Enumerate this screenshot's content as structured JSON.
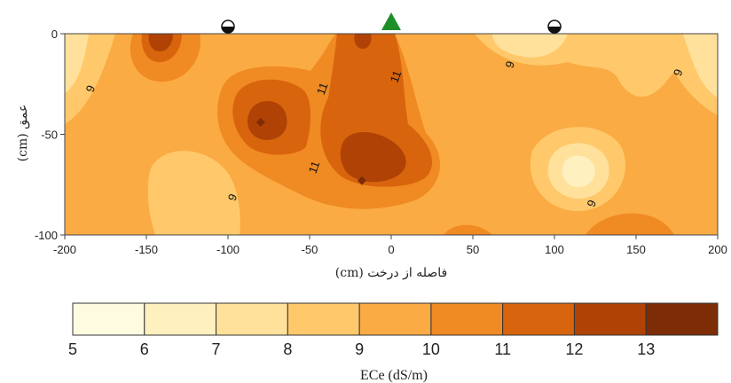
{
  "chart_data": {
    "type": "heatmap",
    "xlabel": "فاصله از درخت (cm)",
    "ylabel": "عمق (cm)",
    "x_range": [
      -200,
      200
    ],
    "y_range": [
      -100,
      0
    ],
    "x_ticks": [
      "-200",
      "-150",
      "-100",
      "-50",
      "0",
      "50",
      "100",
      "150",
      "200"
    ],
    "y_ticks": [
      "0",
      "-50",
      "-100"
    ],
    "colorbar": {
      "label": "ECe (dS/m)",
      "levels": [
        "5",
        "6",
        "7",
        "8",
        "9",
        "10",
        "11",
        "12",
        "13"
      ],
      "colors": [
        "#fffbe0",
        "#fff0c0",
        "#ffe19b",
        "#ffc96b",
        "#fbab43",
        "#f08a22",
        "#d8640d",
        "#b04206",
        "#7d2c06"
      ]
    },
    "contour_labels": [
      {
        "text": "9",
        "x": -182,
        "y": -28
      },
      {
        "text": "11",
        "x": -40,
        "y": -28
      },
      {
        "text": "11",
        "x": 5,
        "y": -22
      },
      {
        "text": "9",
        "x": 75,
        "y": -16
      },
      {
        "text": "9",
        "x": 178,
        "y": -20
      },
      {
        "text": "11",
        "x": -45,
        "y": -67
      },
      {
        "text": "9",
        "x": -95,
        "y": -82
      },
      {
        "text": "9",
        "x": 125,
        "y": -85
      }
    ],
    "markers": [
      {
        "type": "triangle",
        "x": 0,
        "color": "#1f8f2a"
      },
      {
        "type": "circle-half",
        "x": -100
      },
      {
        "type": "circle-half",
        "x": 100
      }
    ],
    "hotspots": [
      {
        "x": -80,
        "y": -44,
        "value": 13
      },
      {
        "x": -18,
        "y": -73,
        "value": 13
      }
    ]
  }
}
